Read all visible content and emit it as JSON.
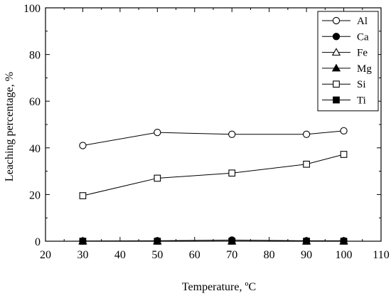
{
  "chart_data": {
    "type": "line",
    "xlabel": "Temperature, ºC",
    "ylabel": "Leaching percentage, %",
    "xlim": [
      20,
      110
    ],
    "ylim": [
      0,
      100
    ],
    "xticks": [
      "20",
      "30",
      "40",
      "50",
      "60",
      "70",
      "80",
      "90",
      "100",
      "110"
    ],
    "yticks": [
      "0",
      "20",
      "40",
      "60",
      "80",
      "100"
    ],
    "legend_position": "top-right",
    "grid": false,
    "x": [
      30,
      50,
      70,
      90,
      100
    ],
    "series": [
      {
        "name": "Al",
        "marker": "open-circle",
        "values": [
          41,
          46.6,
          45.8,
          45.8,
          47.3
        ]
      },
      {
        "name": "Ca",
        "marker": "filled-circle",
        "values": [
          0.1,
          0.2,
          0.5,
          0.2,
          0.2
        ]
      },
      {
        "name": "Fe",
        "marker": "open-triangle",
        "values": [
          0,
          0,
          0,
          0,
          0
        ]
      },
      {
        "name": "Mg",
        "marker": "filled-triangle",
        "values": [
          0,
          0,
          0,
          0,
          0
        ]
      },
      {
        "name": "Si",
        "marker": "open-square",
        "values": [
          19.5,
          27,
          29.2,
          33,
          37.2
        ]
      },
      {
        "name": "Ti",
        "marker": "filled-square",
        "values": [
          0,
          0,
          0,
          0,
          0
        ]
      }
    ]
  }
}
